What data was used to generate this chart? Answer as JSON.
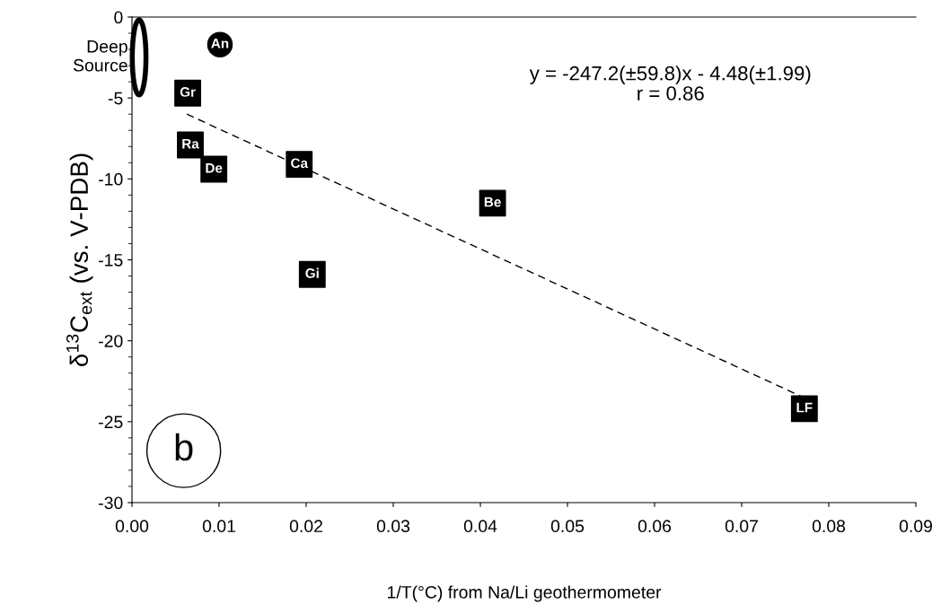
{
  "chart_data": {
    "type": "scatter",
    "xlabel": "1/T(°C) from Na/Li geothermometer",
    "ylabel": "δ$^{13}$C$_{ext}$ (vs. V-PDB)",
    "series": [
      {
        "marker": "square",
        "color": "#000000",
        "x": [
          0.0064,
          0.0067,
          0.0094,
          0.0192,
          0.0207,
          0.0414,
          0.0772
        ],
        "values": [
          -4.7,
          -7.9,
          -9.4,
          -9.1,
          -15.9,
          -11.5,
          -24.2
        ]
      },
      {
        "marker": "circle",
        "color": "#000000",
        "x": [
          0.0101
        ],
        "values": [
          -1.7
        ]
      },
      {
        "type": "line",
        "line_style": "dashed",
        "color": "#000000",
        "x": [
          0.0063,
          0.0771
        ],
        "values": [
          -6.0,
          -23.5
        ]
      }
    ],
    "annotations": [
      {
        "text": "Gr",
        "x": 0.0064,
        "y": -4.7
      },
      {
        "text": "Ra",
        "x": 0.0067,
        "y": -7.9
      },
      {
        "text": "De",
        "x": 0.0094,
        "y": -9.4
      },
      {
        "text": "Ca",
        "x": 0.0192,
        "y": -9.1
      },
      {
        "text": "Gi",
        "x": 0.0207,
        "y": -15.9
      },
      {
        "text": "Be",
        "x": 0.0414,
        "y": -11.5
      },
      {
        "text": "LF",
        "x": 0.0772,
        "y": -24.2
      },
      {
        "text": "An",
        "x": 0.0101,
        "y": -1.7
      },
      "y = -247.2(±59.8)x - 4.48(±1.99)\nr = 0.86",
      "Deep\nSource",
      "b"
    ],
    "xlim": [
      0,
      0.09
    ],
    "xticks": [
      {
        "value": 0,
        "label": "0.00"
      },
      {
        "value": 0.01,
        "label": "0.01"
      },
      {
        "value": 0.02,
        "label": "0.02"
      },
      {
        "value": 0.03,
        "label": "0.03"
      },
      {
        "value": 0.04,
        "label": "0.04"
      },
      {
        "value": 0.05,
        "label": "0.05"
      },
      {
        "value": 0.06,
        "label": "0.06"
      },
      {
        "value": 0.07,
        "label": "0.07"
      },
      {
        "value": 0.08,
        "label": "0.08"
      },
      {
        "value": 0.09,
        "label": "0.09"
      }
    ],
    "ylim": [
      -30,
      0
    ],
    "yticks": [
      -30,
      -25,
      -20,
      -15,
      -10,
      -5,
      0
    ],
    "grid": false,
    "legend": false
  }
}
